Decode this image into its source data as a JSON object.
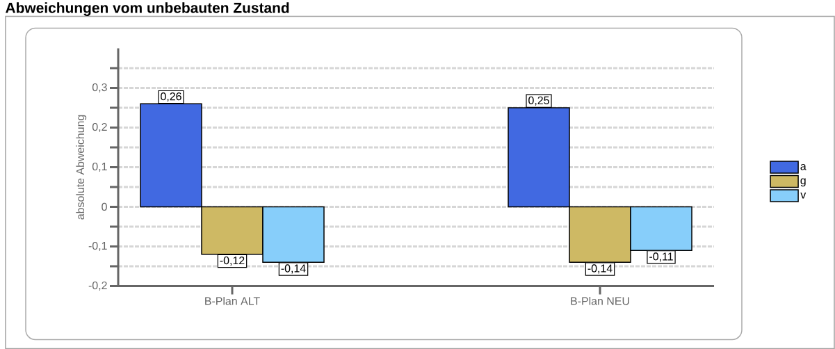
{
  "chart_data": {
    "type": "bar",
    "title": "Abweichungen vom unbebauten Zustand",
    "ylabel": "absolute Abweichung",
    "categories": [
      "B-Plan ALT",
      "B-Plan NEU"
    ],
    "series": [
      {
        "name": "a",
        "color": "#4169e1",
        "values": [
          0.26,
          0.25
        ],
        "value_labels": [
          "0,26",
          "0,25"
        ]
      },
      {
        "name": "g",
        "color": "#ceb964",
        "values": [
          -0.12,
          -0.14
        ],
        "value_labels": [
          "-0,12",
          "-0,14"
        ]
      },
      {
        "name": "v",
        "color": "#87cefa",
        "values": [
          -0.14,
          -0.11
        ],
        "value_labels": [
          "-0,14",
          "-0,11"
        ]
      }
    ],
    "ylim": [
      -0.2,
      0.4
    ],
    "yticks": [
      {
        "value": -0.2,
        "label": "-0,2"
      },
      {
        "value": -0.15,
        "label": null
      },
      {
        "value": -0.1,
        "label": "-0,1"
      },
      {
        "value": -0.05,
        "label": null
      },
      0,
      {
        "value": 0.05,
        "label": null
      },
      {
        "value": 0.1,
        "label": "0,1"
      },
      {
        "value": 0.15,
        "label": null
      },
      {
        "value": 0.2,
        "label": "0,2"
      },
      {
        "value": 0.25,
        "label": null
      },
      {
        "value": 0.3,
        "label": "0,3"
      },
      {
        "value": 0.35,
        "label": null
      }
    ],
    "grid": "y",
    "legend": "right"
  }
}
